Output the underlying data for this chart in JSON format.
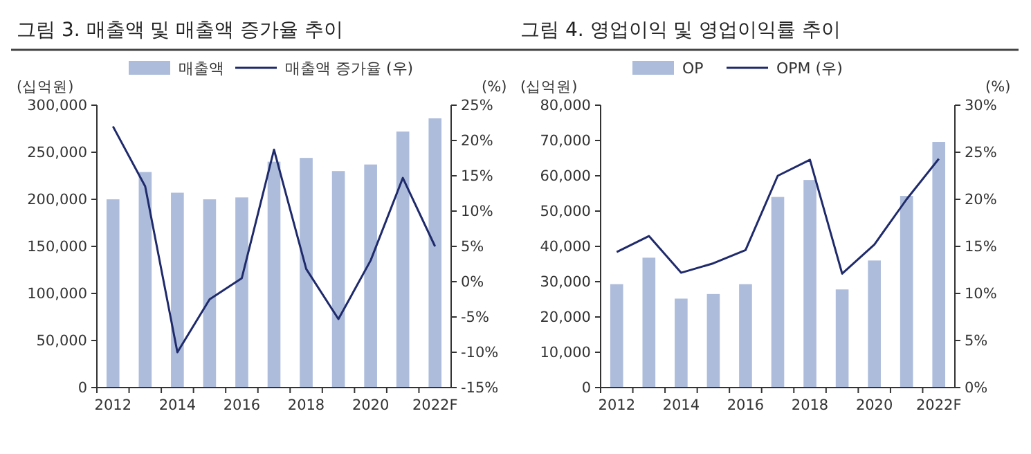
{
  "chart_data": [
    {
      "type": "bar",
      "title": "그림 3. 매출액 및 매출액 증가율 추이",
      "ylabel": "(십억원)",
      "y2label": "(%)",
      "legend": "top",
      "grid": false,
      "categories": [
        "2012",
        null,
        "2014",
        null,
        "2016",
        null,
        "2018",
        null,
        "2020",
        null,
        "2022F"
      ],
      "series": [
        {
          "name": "매출액",
          "color": "#adbcdb",
          "values": [
            200000,
            229000,
            207000,
            200000,
            202000,
            240000,
            244000,
            230000,
            237000,
            272000,
            286000
          ]
        },
        {
          "name": "매출액 증가율 (우)",
          "type": "line",
          "axis": "y2",
          "color": "#1f2a6b",
          "values": [
            22,
            13.5,
            -10,
            -2.5,
            0.5,
            18.7,
            1.8,
            -5.3,
            3,
            14.7,
            5
          ]
        }
      ],
      "ylim": [
        0,
        300000
      ],
      "yticks": [
        0,
        {
          "value": 50000,
          "label": "50,000"
        },
        {
          "value": 100000,
          "label": "100,000"
        },
        {
          "value": 150000,
          "label": "150,000"
        },
        {
          "value": 200000,
          "label": "200,000"
        },
        {
          "value": 250000,
          "label": "250,000"
        },
        {
          "value": 300000,
          "label": "300,000"
        }
      ],
      "y2lim": [
        -15,
        25
      ],
      "y2ticks": [
        {
          "value": -15,
          "label": "-15%"
        },
        {
          "value": -10,
          "label": "-10%"
        },
        {
          "value": -5,
          "label": "-5%"
        },
        {
          "value": 0,
          "label": "0%"
        },
        {
          "value": 5,
          "label": "5%"
        },
        {
          "value": 10,
          "label": "10%"
        },
        {
          "value": 15,
          "label": "15%"
        },
        {
          "value": 20,
          "label": "20%"
        },
        {
          "value": 25,
          "label": "25%"
        }
      ]
    },
    {
      "type": "bar",
      "title": "그림 4. 영업이익 및 영업이익률 추이",
      "ylabel": "(십억원)",
      "y2label": "(%)",
      "legend": "top",
      "grid": false,
      "categories": [
        "2012",
        null,
        "2014",
        null,
        "2016",
        null,
        "2018",
        null,
        "2020",
        null,
        "2022F"
      ],
      "series": [
        {
          "name": "OP",
          "color": "#adbcdb",
          "values": [
            29300,
            36800,
            25200,
            26500,
            29300,
            54000,
            58800,
            27800,
            36000,
            54300,
            69600
          ]
        },
        {
          "name": "OPM (우)",
          "type": "line",
          "axis": "y2",
          "color": "#1f2a6b",
          "values": [
            14.4,
            16.1,
            12.2,
            13.2,
            14.6,
            22.5,
            24.2,
            12.1,
            15.2,
            20.0,
            24.3
          ]
        }
      ],
      "ylim": [
        0,
        80000
      ],
      "yticks": [
        0,
        {
          "value": 10000,
          "label": "10,000"
        },
        {
          "value": 20000,
          "label": "20,000"
        },
        {
          "value": 30000,
          "label": "30,000"
        },
        {
          "value": 40000,
          "label": "40,000"
        },
        {
          "value": 50000,
          "label": "50,000"
        },
        {
          "value": 60000,
          "label": "60,000"
        },
        {
          "value": 70000,
          "label": "70,000"
        },
        {
          "value": 80000,
          "label": "80,000"
        }
      ],
      "y2lim": [
        0,
        30
      ],
      "y2ticks": [
        {
          "value": 0,
          "label": "0%"
        },
        {
          "value": 5,
          "label": "5%"
        },
        {
          "value": 10,
          "label": "10%"
        },
        {
          "value": 15,
          "label": "15%"
        },
        {
          "value": 20,
          "label": "20%"
        },
        {
          "value": 25,
          "label": "25%"
        },
        {
          "value": 30,
          "label": "30%"
        }
      ]
    }
  ]
}
